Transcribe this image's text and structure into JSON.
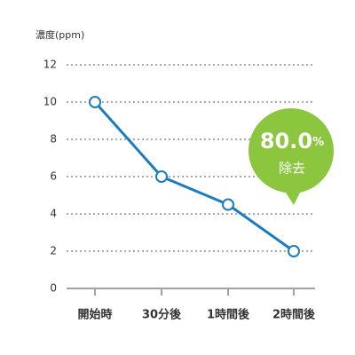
{
  "chart_data": {
    "type": "line",
    "y_label": "濃度(ppm)",
    "categories": [
      "開始時",
      "30分後",
      "1時間後",
      "2時間後"
    ],
    "values": [
      10,
      6,
      4.5,
      2
    ],
    "color": "#1a7dc0",
    "ylim": [
      0,
      12
    ],
    "yticks": [
      0,
      2,
      4,
      6,
      8,
      10,
      12
    ],
    "grid": true,
    "annotation": {
      "value": "80.0",
      "unit": "%",
      "text": "除去",
      "color": "#8cc63f"
    }
  }
}
